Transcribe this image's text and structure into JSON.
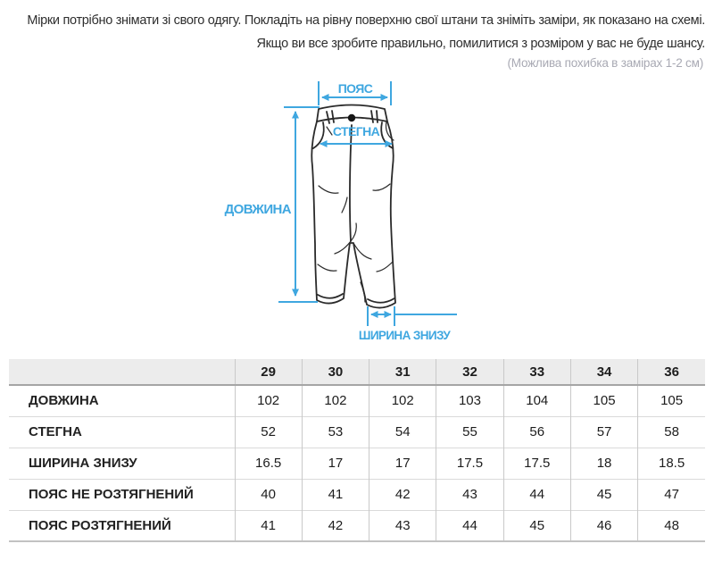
{
  "intro": {
    "line1": "Мірки потрібно знімати зі свого одягу. Покладіть на рівну поверхню свої штани та зніміть заміри, як показано на схемі.",
    "line2": "Якщо ви все зробите правильно, помилитися з розміром у вас не буде шансу.",
    "note": "(Можлива похибка в замірах 1-2 см)"
  },
  "diagram": {
    "labels": {
      "waist": "ПОЯС",
      "hips": "СТЕГНА",
      "length": "ДОВЖИНА",
      "bottom_width": "ШИРИНА ЗНИЗУ"
    },
    "accent_color": "#3fa7e0",
    "outline_color": "#2a2a2a"
  },
  "size_table": {
    "columns": [
      "29",
      "30",
      "31",
      "32",
      "33",
      "34",
      "36"
    ],
    "rows": [
      {
        "label": "ДОВЖИНА",
        "values": [
          "102",
          "102",
          "102",
          "103",
          "104",
          "105",
          "105"
        ]
      },
      {
        "label": "СТЕГНА",
        "values": [
          "52",
          "53",
          "54",
          "55",
          "56",
          "57",
          "58"
        ]
      },
      {
        "label": "ШИРИНА ЗНИЗУ",
        "values": [
          "16.5",
          "17",
          "17",
          "17.5",
          "17.5",
          "18",
          "18.5"
        ]
      },
      {
        "label": "ПОЯС НЕ РОЗТЯГНЕНИЙ",
        "values": [
          "40",
          "41",
          "42",
          "43",
          "44",
          "45",
          "47"
        ]
      },
      {
        "label": "ПОЯС РОЗТЯГНЕНИЙ",
        "values": [
          "41",
          "42",
          "43",
          "44",
          "45",
          "46",
          "48"
        ]
      }
    ]
  }
}
